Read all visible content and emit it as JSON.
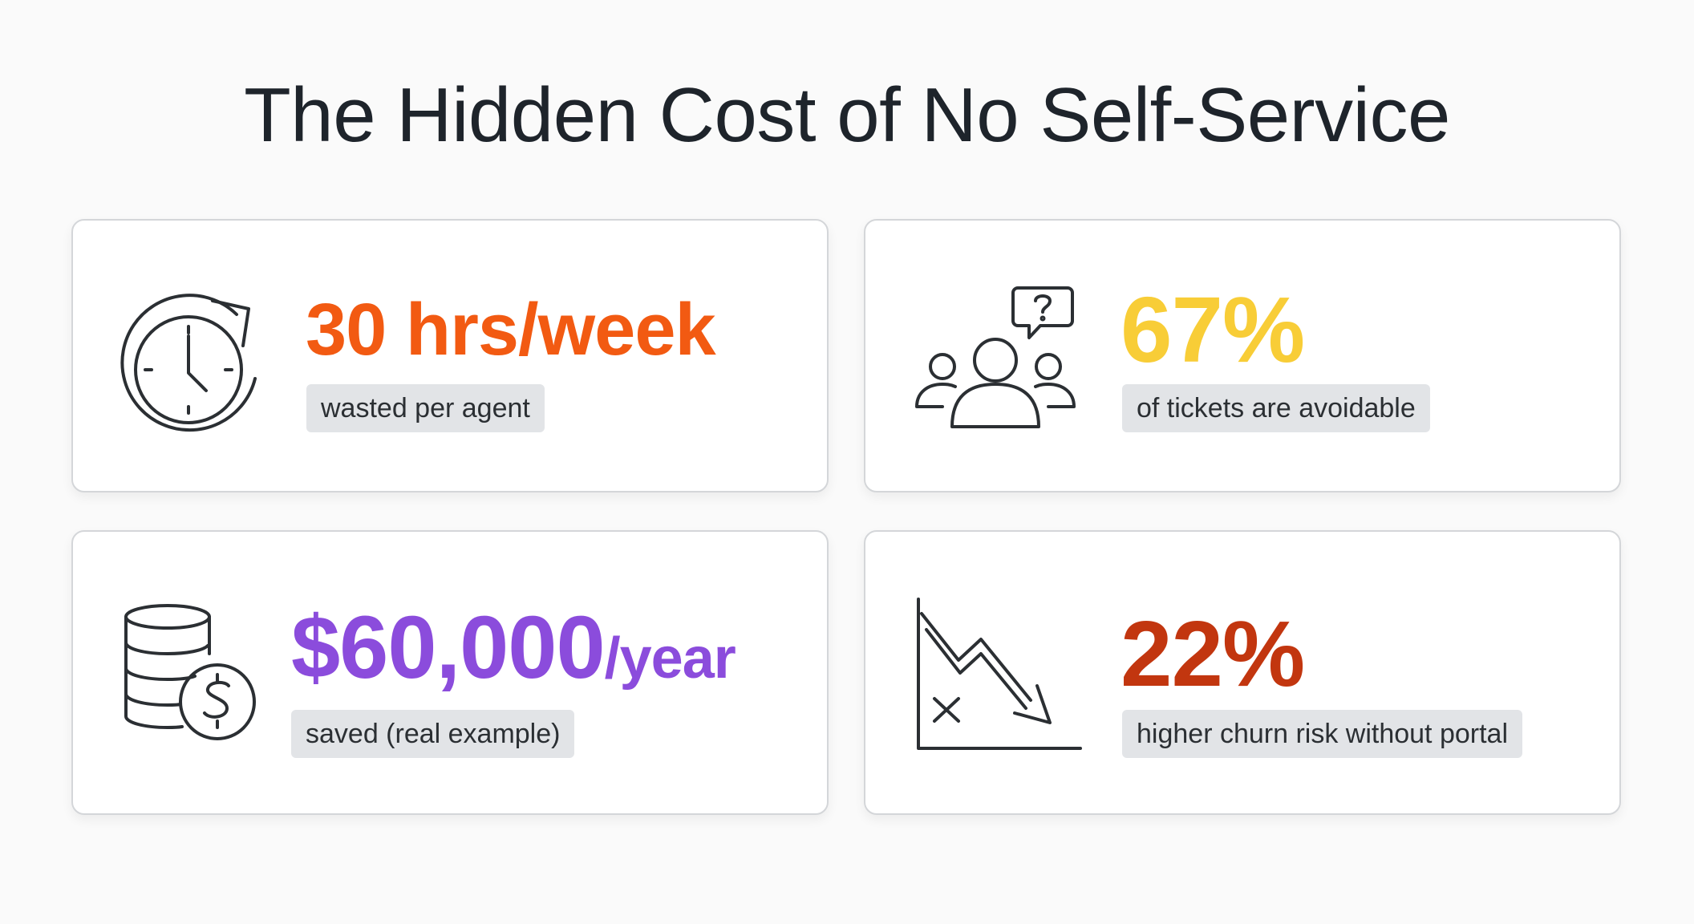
{
  "title": "The Hidden Cost of No Self-Service",
  "cards": [
    {
      "icon": "clock-refresh-icon",
      "stat": "30 hrs/week",
      "stat_color": "#f25a12",
      "label": "wasted per agent"
    },
    {
      "icon": "group-question-icon",
      "stat": "67%",
      "stat_color": "#f8cd37",
      "label": "of tickets are avoidable"
    },
    {
      "icon": "coins-dollar-icon",
      "stat_main": "$60,000",
      "stat_suffix": "/year",
      "stat_color": "#8b4cdc",
      "label": "saved (real example)"
    },
    {
      "icon": "declining-chart-icon",
      "stat": "22%",
      "stat_color": "#c2360f",
      "label": "higher churn risk without portal"
    }
  ]
}
